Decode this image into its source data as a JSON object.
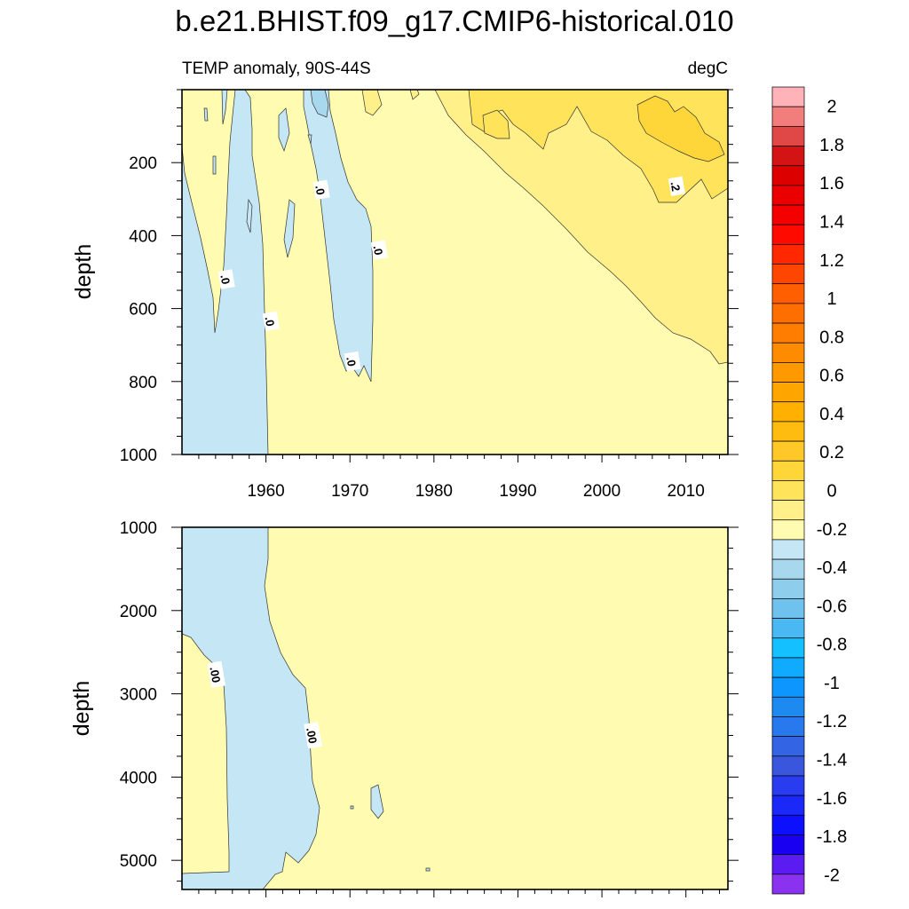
{
  "chart_data": {
    "type": "contour",
    "title": "b.e21.BHIST.f09_g17.CMIP6-historical.010",
    "variable": "TEMP anomaly, 90S-44S",
    "units": "degC",
    "panels": [
      {
        "name": "upper",
        "ylabel": "depth",
        "ylim": [
          0,
          1000
        ],
        "y_ticks": [
          200,
          400,
          600,
          800,
          1000
        ],
        "xlim": [
          1950,
          2015
        ],
        "x_ticks": [
          1960,
          1970,
          1980,
          1990,
          2000,
          2010
        ],
        "contour_labels": [
          {
            "text": ".0",
            "x": 1955.2,
            "y": 520
          },
          {
            "text": ".0",
            "x": 1960.5,
            "y": 635
          },
          {
            "text": ".0",
            "x": 1966.5,
            "y": 275
          },
          {
            "text": ".0",
            "x": 1973.4,
            "y": 440
          },
          {
            "text": ".0",
            "x": 1970.2,
            "y": 745
          },
          {
            "text": ".2",
            "x": 2008.8,
            "y": 265
          }
        ]
      },
      {
        "name": "lower",
        "ylabel": "depth",
        "ylim": [
          1000,
          5350
        ],
        "y_ticks": [
          1000,
          2000,
          3000,
          4000,
          5000
        ],
        "xlim": [
          1950,
          2015
        ],
        "contour_labels": [
          {
            "text": ".00",
            "x": 1954.0,
            "y": 2770
          },
          {
            "text": ".00",
            "x": 1965.5,
            "y": 3500
          }
        ]
      }
    ],
    "colorbar": {
      "min": -2.1,
      "max": 2.1,
      "step": 0.1,
      "labels": [
        "2",
        "1.8",
        "1.6",
        "1.4",
        "1.2",
        "1",
        "0.8",
        "0.6",
        "0.4",
        "0.2",
        "0",
        "-0.2",
        "-0.4",
        "-0.6",
        "-0.8",
        "-1",
        "-1.2",
        "-1.4",
        "-1.6",
        "-1.8",
        "-2"
      ],
      "colors": [
        "#ffb3b8",
        "#f27d7d",
        "#e04848",
        "#d41414",
        "#dc0000",
        "#ea0000",
        "#f50000",
        "#ff0a00",
        "#ff2800",
        "#ff4600",
        "#ff5f00",
        "#ff6e00",
        "#ff7d00",
        "#ff8c00",
        "#ff9900",
        "#ffa500",
        "#ffb000",
        "#ffbc10",
        "#ffc828",
        "#ffd63a",
        "#ffe35a",
        "#fff08a",
        "#fffbb0",
        "#c5e6f5",
        "#a8d8ee",
        "#8ecdec",
        "#70c2ee",
        "#4ab8f2",
        "#14c0ff",
        "#10aaff",
        "#0e96ff",
        "#1c8af0",
        "#2878ee",
        "#3264e4",
        "#3a56dc",
        "#2a3cf0",
        "#1a28f8",
        "#0c10ff",
        "#1a00f0",
        "#5a1cf0",
        "#8a32f0"
      ]
    }
  }
}
